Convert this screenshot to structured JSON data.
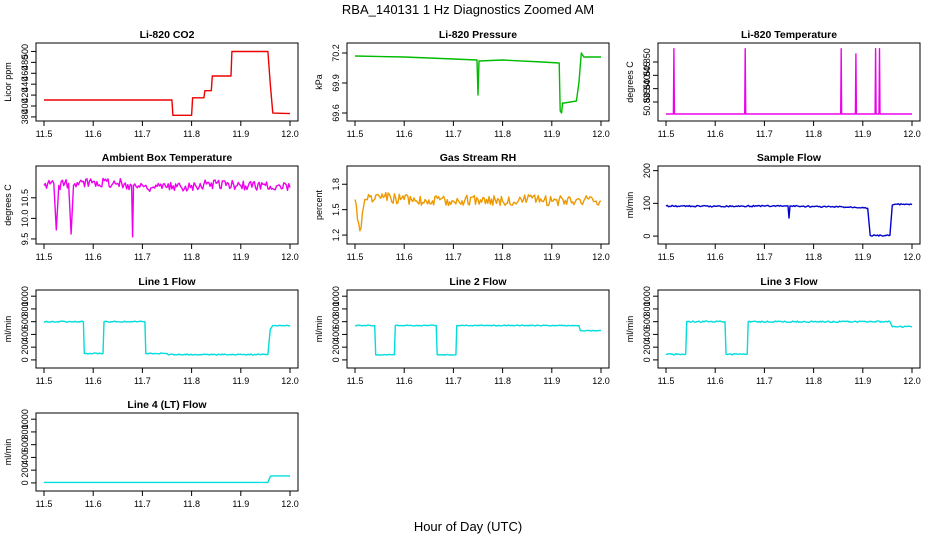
{
  "figure": {
    "title": "RBA_140131  1 Hz Diagnostics Zoomed AM",
    "xlabel": "Hour of Day (UTC)"
  },
  "chart_data": [
    {
      "type": "line",
      "title": "Li-820 CO2",
      "ylabel": "Licor ppm",
      "color": "#ee0000",
      "xlim": [
        11.5,
        12.0
      ],
      "ylim": [
        378,
        510
      ],
      "xticks": [
        "11.5",
        "11.6",
        "11.7",
        "11.8",
        "11.9",
        "12.0"
      ],
      "yticks": [
        380,
        400,
        420,
        440,
        460,
        480,
        500
      ],
      "series": [
        {
          "name": "Li-820 CO2",
          "x": [
            11.5,
            11.76,
            11.762,
            11.8,
            11.802,
            11.825,
            11.827,
            11.84,
            11.842,
            11.88,
            11.882,
            11.955,
            11.96,
            11.965,
            12.0
          ],
          "y": [
            411,
            411,
            383,
            383,
            415,
            415,
            428,
            428,
            455,
            455,
            500,
            500,
            440,
            387,
            386
          ]
        }
      ]
    },
    {
      "type": "line",
      "title": "Li-820 Pressure",
      "ylabel": "kPa",
      "color": "#00bb00",
      "xlim": [
        11.5,
        12.0
      ],
      "ylim": [
        69.55,
        70.27
      ],
      "xticks": [
        "11.5",
        "11.6",
        "11.7",
        "11.8",
        "11.9",
        "12.0"
      ],
      "yticks": [
        "69.6",
        "69.9",
        "70.2"
      ],
      "series": [
        {
          "name": "Li-820 Pressure",
          "x": [
            11.5,
            11.6,
            11.7,
            11.748,
            11.75,
            11.752,
            11.8,
            11.88,
            11.915,
            11.917,
            11.92,
            11.922,
            11.925,
            11.95,
            11.955,
            11.96,
            11.965,
            12.0
          ],
          "y": [
            70.17,
            70.16,
            70.14,
            70.13,
            69.78,
            70.12,
            70.13,
            70.11,
            70.1,
            69.62,
            69.6,
            69.7,
            69.7,
            69.72,
            69.9,
            70.2,
            70.16,
            70.16
          ]
        }
      ]
    },
    {
      "type": "line",
      "title": "Li-820 Temperature",
      "ylabel": "degrees C",
      "color": "#ee00ee",
      "xlim": [
        11.5,
        12.0
      ],
      "ylim": [
        50.829,
        50.856
      ],
      "xticks": [
        "11.5",
        "11.6",
        "11.7",
        "11.8",
        "11.9",
        "12.0"
      ],
      "yticks": [
        "50.835",
        "50.840",
        "50.845",
        "50.850"
      ],
      "series": [
        {
          "name": "Li-820 Temperature",
          "x": [
            11.5,
            11.515,
            11.516,
            11.517,
            11.66,
            11.661,
            11.662,
            11.855,
            11.856,
            11.857,
            11.885,
            11.886,
            11.887,
            11.925,
            11.926,
            11.927,
            11.933,
            11.934,
            11.935,
            12.0
          ],
          "y": [
            50.8305,
            50.8305,
            50.855,
            50.8305,
            50.8305,
            50.855,
            50.8305,
            50.8305,
            50.855,
            50.8305,
            50.8305,
            50.853,
            50.8305,
            50.8305,
            50.855,
            50.8305,
            50.8305,
            50.855,
            50.8305,
            50.8305
          ]
        }
      ]
    },
    {
      "type": "line",
      "title": "Ambient Box Temperature",
      "ylabel": "degrees C",
      "color": "#ee00ee",
      "xlim": [
        11.5,
        12.0
      ],
      "ylim": [
        9.45,
        11.2
      ],
      "xticks": [
        "11.5",
        "11.6",
        "11.7",
        "11.8",
        "11.9",
        "12.0"
      ],
      "yticks": [
        "9.5",
        "10.0",
        "10.5"
      ],
      "series": [
        {
          "name": "Ambient Box Temperature",
          "x": [
            11.5,
            11.52,
            11.525,
            11.53,
            11.55,
            11.555,
            11.56,
            11.6,
            11.65,
            11.678,
            11.68,
            11.682,
            11.75,
            11.8,
            11.85,
            11.9,
            11.95,
            12.0
          ],
          "y": [
            10.8,
            10.85,
            9.72,
            10.8,
            10.85,
            9.62,
            10.8,
            10.9,
            10.85,
            10.8,
            9.55,
            10.8,
            10.75,
            10.8,
            10.85,
            10.8,
            10.8,
            10.75
          ]
        }
      ]
    },
    {
      "type": "line",
      "title": "Gas Stream RH",
      "ylabel": "percent",
      "color": "#ee9900",
      "xlim": [
        11.5,
        12.0
      ],
      "ylim": [
        1.13,
        1.98
      ],
      "xticks": [
        "11.5",
        "11.6",
        "11.7",
        "11.8",
        "11.9",
        "12.0"
      ],
      "yticks": [
        "1.2",
        "1.5",
        "1.8"
      ],
      "series": [
        {
          "name": "Gas Stream RH",
          "x": [
            11.5,
            11.51,
            11.52,
            11.55,
            11.6,
            11.7,
            11.75,
            11.8,
            11.85,
            11.9,
            11.95,
            12.0
          ],
          "y": [
            1.62,
            1.25,
            1.62,
            1.65,
            1.62,
            1.6,
            1.62,
            1.6,
            1.62,
            1.6,
            1.62,
            1.6
          ]
        }
      ]
    },
    {
      "type": "line",
      "title": "Sample Flow",
      "ylabel": "ml/min",
      "color": "#0000cc",
      "xlim": [
        11.5,
        12.0
      ],
      "ylim": [
        -15,
        205
      ],
      "xticks": [
        "11.5",
        "11.6",
        "11.7",
        "11.8",
        "11.9",
        "12.0"
      ],
      "yticks": [
        0,
        100,
        200
      ],
      "series": [
        {
          "name": "Sample Flow",
          "x": [
            11.5,
            11.6,
            11.7,
            11.748,
            11.75,
            11.752,
            11.8,
            11.9,
            11.91,
            11.915,
            11.955,
            11.96,
            11.965,
            12.0
          ],
          "y": [
            92,
            91,
            92,
            92,
            55,
            92,
            90,
            88,
            85,
            2,
            2,
            95,
            97,
            96
          ]
        }
      ]
    },
    {
      "type": "line",
      "title": "Line 1 Flow",
      "ylabel": "ml/min",
      "color": "#00dddd",
      "xlim": [
        11.5,
        12.0
      ],
      "ylim": [
        -80,
        1050
      ],
      "xticks": [
        "11.5",
        "11.6",
        "11.7",
        "11.8",
        "11.9",
        "12.0"
      ],
      "yticks": [
        0,
        200,
        400,
        600,
        800,
        1000
      ],
      "series": [
        {
          "name": "Line 1 Flow",
          "x": [
            11.5,
            11.58,
            11.582,
            11.62,
            11.622,
            11.705,
            11.707,
            11.75,
            11.752,
            11.955,
            11.96,
            11.965,
            12.0
          ],
          "y": [
            600,
            600,
            100,
            100,
            600,
            600,
            100,
            100,
            85,
            85,
            480,
            540,
            540
          ]
        }
      ]
    },
    {
      "type": "line",
      "title": "Line 2 Flow",
      "ylabel": "ml/min",
      "color": "#00dddd",
      "xlim": [
        11.5,
        12.0
      ],
      "ylim": [
        -80,
        1050
      ],
      "xticks": [
        "11.5",
        "11.6",
        "11.7",
        "11.8",
        "11.9",
        "12.0"
      ],
      "yticks": [
        0,
        200,
        400,
        600,
        800,
        1000
      ],
      "series": [
        {
          "name": "Line 2 Flow",
          "x": [
            11.5,
            11.54,
            11.542,
            11.58,
            11.582,
            11.665,
            11.667,
            11.705,
            11.707,
            11.955,
            11.958,
            12.0
          ],
          "y": [
            540,
            540,
            80,
            80,
            540,
            540,
            80,
            80,
            540,
            540,
            460,
            460
          ]
        }
      ]
    },
    {
      "type": "line",
      "title": "Line 3 Flow",
      "ylabel": "ml/min",
      "color": "#00dddd",
      "xlim": [
        11.5,
        12.0
      ],
      "ylim": [
        -80,
        1050
      ],
      "xticks": [
        "11.5",
        "11.6",
        "11.7",
        "11.8",
        "11.9",
        "12.0"
      ],
      "yticks": [
        0,
        200,
        400,
        600,
        800,
        1000
      ],
      "series": [
        {
          "name": "Line 3 Flow",
          "x": [
            11.5,
            11.54,
            11.542,
            11.62,
            11.622,
            11.665,
            11.667,
            11.955,
            11.96,
            12.0
          ],
          "y": [
            90,
            90,
            600,
            600,
            90,
            90,
            600,
            600,
            520,
            520
          ]
        }
      ]
    },
    {
      "type": "line",
      "title": "Line 4 (LT) Flow",
      "ylabel": "ml/min",
      "color": "#00dddd",
      "xlim": [
        11.5,
        12.0
      ],
      "ylim": [
        -80,
        1050
      ],
      "xticks": [
        "11.5",
        "11.6",
        "11.7",
        "11.8",
        "11.9",
        "12.0"
      ],
      "yticks": [
        0,
        200,
        400,
        600,
        800,
        1000
      ],
      "series": [
        {
          "name": "Line 4 (LT) Flow",
          "x": [
            11.5,
            11.955,
            11.96,
            11.962,
            12.0
          ],
          "y": [
            8,
            8,
            100,
            110,
            110
          ]
        }
      ]
    }
  ]
}
